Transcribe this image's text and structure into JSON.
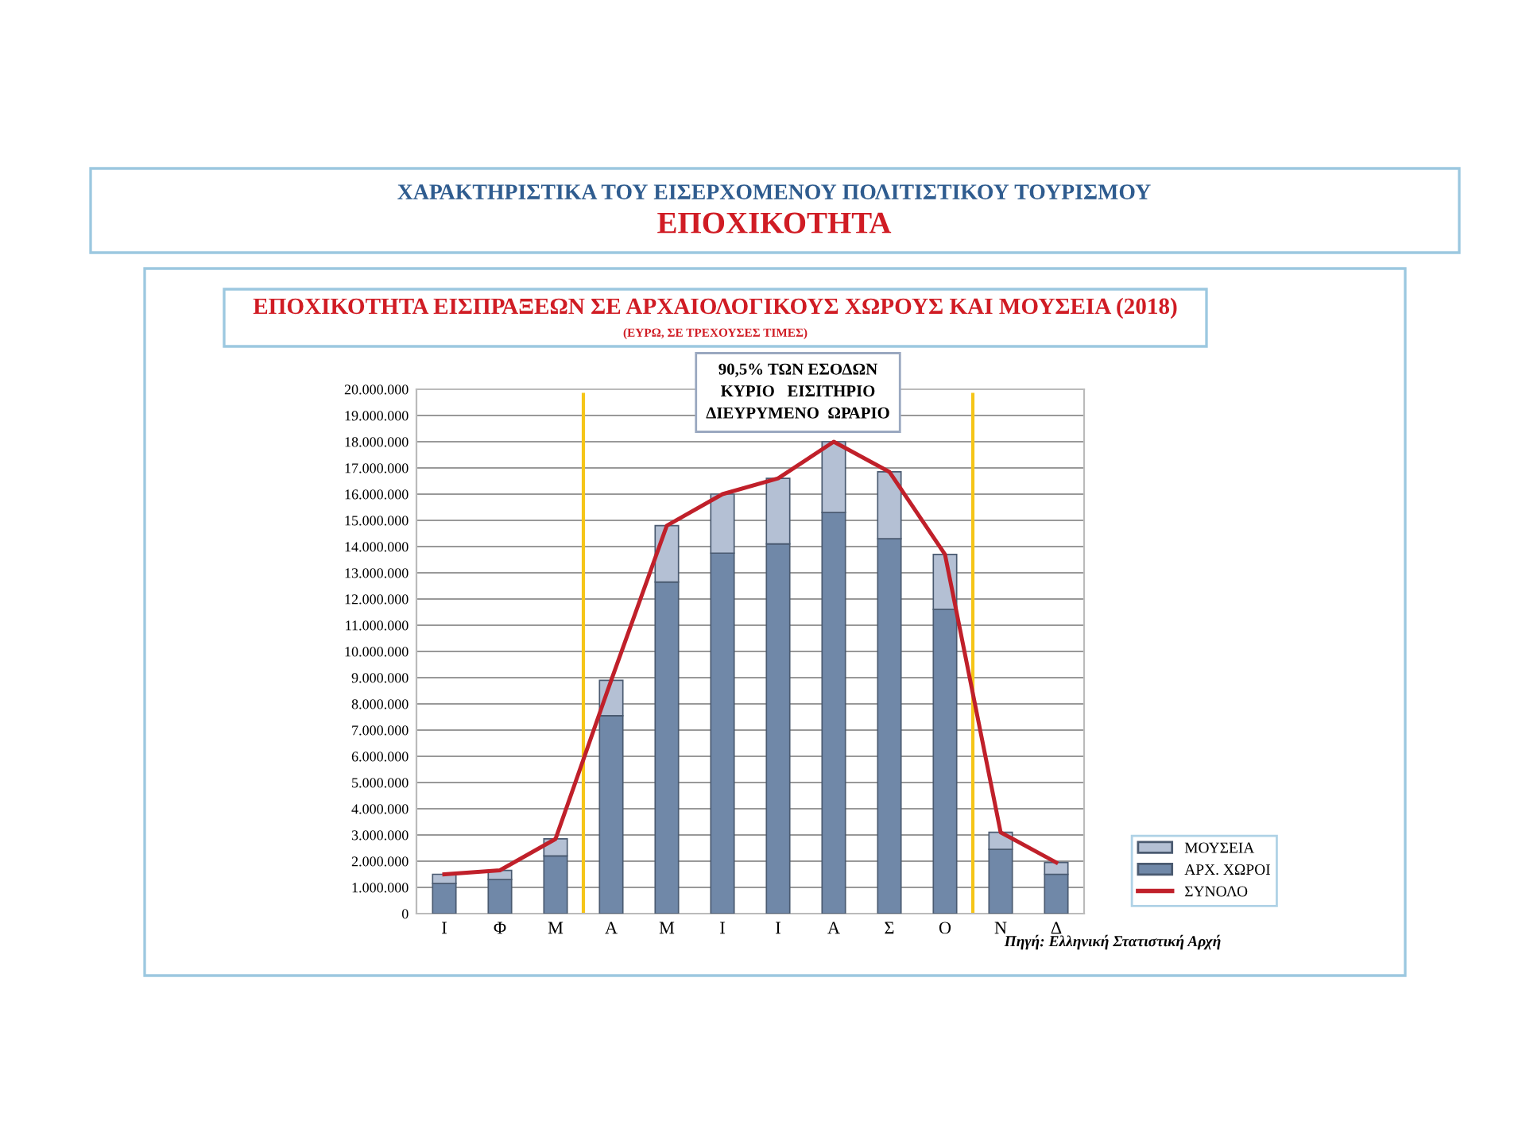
{
  "chart_data": {
    "type": "bar",
    "stacked": true,
    "title": "ΕΠΟΧΙΚΟΤΗΤΑ ΕΙΣΠΡΑΞΕΩΝ ΣΕ ΑΡΧΑΙΟΛΟΓΙΚΟΥΣ ΧΩΡΟΥΣ ΚΑΙ ΜΟΥΣΕΙΑ (2018)",
    "subtitle": "(ΕΥΡΩ, ΣΕ ΤΡΕΧΟΥΣΕΣ ΤΙΜΕΣ)",
    "annotations": [
      "ΧΑΡΑΚΤΗΡΙΣΤΙΚΑ ΤΟΥ ΕΙΣΕΡΧΟΜΕΝΟΥ ΠΟΛΙΤΙΣΤΙΚΟΥ ΤΟΥΡΙΣΜΟΥ",
      "ΕΠΟΧΙΚΟΤΗΤΑ",
      "90,5% ΤΩΝ ΕΣΟΔΩΝ\nΚΥΡΙΟ   ΕΙΣΙΤΗΡΙΟ\nΔΙΕΥΡΥΜΕΝΟ  ΩΡΑΡΙΟ",
      "Πηγή: Ελληνική Στατιστική Αρχή"
    ],
    "categories": [
      "Ι",
      "Φ",
      "Μ",
      "Α",
      "Μ",
      "Ι",
      "Ι",
      "Α",
      "Σ",
      "Ο",
      "Ν",
      "Δ"
    ],
    "series": [
      {
        "name": "ΑΡΧ. ΧΩΡΟΙ",
        "color": "#7088a8",
        "values": [
          1150000,
          1300000,
          2200000,
          7550000,
          12650000,
          13750000,
          14100000,
          15300000,
          14300000,
          11600000,
          2450000,
          1500000
        ]
      },
      {
        "name": "ΜΟΥΣΕΙΑ",
        "color": "#b4c0d4",
        "values": [
          350000,
          350000,
          650000,
          1350000,
          2150000,
          2250000,
          2500000,
          2700000,
          2550000,
          2100000,
          650000,
          450000
        ]
      },
      {
        "name": "ΣΥΝΟΛΟ",
        "type": "line",
        "color": "#c0202a",
        "values": [
          1500000,
          1650000,
          2850000,
          8900000,
          14800000,
          16000000,
          16600000,
          18000000,
          16850000,
          13700000,
          3100000,
          1950000
        ]
      }
    ],
    "ylim": [
      0,
      20000000
    ],
    "yticks": [
      {
        "value": 0,
        "label": "0"
      },
      {
        "value": 1000000,
        "label": "1.000.000"
      },
      {
        "value": 2000000,
        "label": "2.000.000"
      },
      {
        "value": 3000000,
        "label": "3.000.000"
      },
      {
        "value": 4000000,
        "label": "4.000.000"
      },
      {
        "value": 5000000,
        "label": "5.000.000"
      },
      {
        "value": 6000000,
        "label": "6.000.000"
      },
      {
        "value": 7000000,
        "label": "7.000.000"
      },
      {
        "value": 8000000,
        "label": "8.000.000"
      },
      {
        "value": 9000000,
        "label": "9.000.000"
      },
      {
        "value": 10000000,
        "label": "10.000.000"
      },
      {
        "value": 11000000,
        "label": "11.000.000"
      },
      {
        "value": 12000000,
        "label": "12.000.000"
      },
      {
        "value": 13000000,
        "label": "13.000.000"
      },
      {
        "value": 14000000,
        "label": "14.000.000"
      },
      {
        "value": 15000000,
        "label": "15.000.000"
      },
      {
        "value": 16000000,
        "label": "16.000.000"
      },
      {
        "value": 17000000,
        "label": "17.000.000"
      },
      {
        "value": 18000000,
        "label": "18.000.000"
      },
      {
        "value": 19000000,
        "label": "19.000.000"
      },
      {
        "value": 20000000,
        "label": "20.000.000"
      }
    ],
    "grid": "y",
    "legend": "bottom right"
  }
}
